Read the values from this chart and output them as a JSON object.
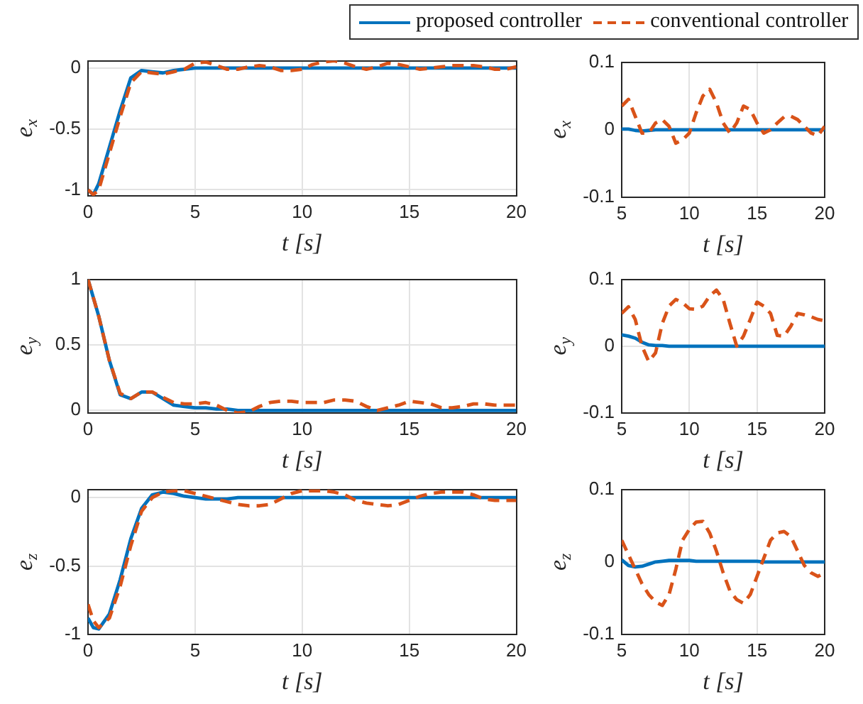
{
  "chart_data": [
    {
      "type": "line",
      "xlabel": "t [s]",
      "ylabel": "e$_{x}$",
      "legend": "top right",
      "grid": true,
      "xlim": [
        0,
        20
      ],
      "xticks": [
        0,
        5,
        10,
        15,
        20
      ],
      "ylim": [
        -1.05,
        0.06
      ],
      "yticks": [
        -1,
        -0.5,
        0
      ],
      "x": [
        0,
        0.25,
        0.5,
        1,
        1.5,
        2,
        2.5,
        3,
        3.5,
        4,
        4.5,
        5,
        5.5,
        6,
        6.5,
        7,
        7.5,
        8,
        8.5,
        9,
        9.5,
        10,
        10.5,
        11,
        11.5,
        12,
        12.5,
        13,
        13.5,
        14,
        14.5,
        15,
        15.5,
        16,
        16.5,
        17,
        17.5,
        18,
        18.5,
        19,
        19.5,
        20
      ],
      "series": [
        {
          "name": "proposed controller",
          "color": "#0072bd",
          "line_style": "solid",
          "values": [
            -1.0,
            -1.04,
            -0.95,
            -0.65,
            -0.35,
            -0.08,
            -0.02,
            -0.03,
            -0.04,
            -0.02,
            -0.01,
            0,
            0,
            0,
            0,
            0,
            0,
            0,
            0,
            0,
            0,
            0,
            0,
            0,
            0,
            0,
            0,
            0,
            0,
            0,
            0,
            0,
            0,
            0,
            0,
            0,
            0,
            0,
            0,
            0,
            0,
            0
          ]
        },
        {
          "name": "conventional controller",
          "color": "#d95319",
          "line_style": "dashed",
          "values": [
            -1.0,
            -1.04,
            -1.0,
            -0.7,
            -0.4,
            -0.12,
            -0.03,
            -0.04,
            -0.05,
            -0.03,
            -0.01,
            0.04,
            0.05,
            0.02,
            -0.01,
            -0.01,
            0.01,
            0.02,
            0.01,
            -0.02,
            -0.02,
            -0.01,
            0.03,
            0.05,
            0.06,
            0.04,
            0.01,
            -0.01,
            0.01,
            0.04,
            0.03,
            0.01,
            -0.01,
            0,
            0.01,
            0.02,
            0.02,
            0.02,
            0.01,
            -0.01,
            -0.01,
            0.01
          ]
        }
      ]
    },
    {
      "type": "line",
      "xlabel": "t [s]",
      "ylabel": "e$_{x}$",
      "grid": true,
      "xlim": [
        5,
        20
      ],
      "xticks": [
        5,
        10,
        15,
        20
      ],
      "ylim": [
        -0.1,
        0.1
      ],
      "yticks": [
        -0.1,
        0,
        0.1
      ],
      "x": [
        5,
        5.5,
        6,
        6.5,
        7,
        7.5,
        8,
        8.5,
        9,
        9.5,
        10,
        10.5,
        11,
        11.5,
        12,
        12.5,
        13,
        13.5,
        14,
        14.5,
        15,
        15.5,
        16,
        16.5,
        17,
        17.5,
        18,
        18.5,
        19,
        19.5,
        20
      ],
      "series": [
        {
          "color": "#0072bd",
          "line_style": "solid",
          "values": [
            0.001,
            0.001,
            -0.001,
            -0.002,
            -0.001,
            0,
            0,
            0,
            0,
            0,
            0,
            0,
            0,
            0,
            0,
            0,
            0,
            0,
            0,
            0,
            0,
            0,
            0,
            0,
            0,
            0,
            0,
            0,
            0,
            0,
            0
          ]
        },
        {
          "color": "#d95319",
          "line_style": "dashed",
          "values": [
            0.035,
            0.045,
            0.02,
            -0.005,
            -0.005,
            0.01,
            0.015,
            0.005,
            -0.02,
            -0.015,
            -0.005,
            0.025,
            0.05,
            0.06,
            0.04,
            0.01,
            -0.005,
            0.01,
            0.035,
            0.03,
            0.01,
            -0.005,
            0,
            0.01,
            0.019,
            0.02,
            0.015,
            0.005,
            -0.005,
            -0.009,
            0.005
          ]
        }
      ]
    },
    {
      "type": "line",
      "xlabel": "t [s]",
      "ylabel": "e$_{y}$",
      "grid": true,
      "xlim": [
        0,
        20
      ],
      "xticks": [
        0,
        5,
        10,
        15,
        20
      ],
      "ylim": [
        -0.02,
        1
      ],
      "yticks": [
        0,
        0.5,
        1
      ],
      "x": [
        0,
        0.25,
        0.5,
        1,
        1.5,
        2,
        2.5,
        3,
        3.5,
        4,
        4.5,
        5,
        5.5,
        6,
        6.5,
        7,
        7.5,
        8,
        8.5,
        9,
        9.5,
        10,
        10.5,
        11,
        11.5,
        12,
        12.5,
        13,
        13.5,
        14,
        14.5,
        15,
        15.5,
        16,
        16.5,
        17,
        17.5,
        18,
        18.5,
        19,
        19.5,
        20
      ],
      "series": [
        {
          "color": "#0072bd",
          "line_style": "solid",
          "values": [
            1,
            0.86,
            0.72,
            0.38,
            0.12,
            0.09,
            0.14,
            0.14,
            0.09,
            0.04,
            0.03,
            0.02,
            0.02,
            0.01,
            0.01,
            0,
            0,
            0,
            0,
            0,
            0,
            0,
            0,
            0,
            0,
            0,
            0,
            0,
            0,
            0,
            0,
            0,
            0,
            0,
            0,
            0,
            0,
            0,
            0,
            0,
            0,
            0
          ]
        },
        {
          "color": "#d95319",
          "line_style": "dashed",
          "values": [
            1,
            0.86,
            0.72,
            0.38,
            0.13,
            0.09,
            0.14,
            0.14,
            0.1,
            0.06,
            0.05,
            0.05,
            0.06,
            0.04,
            0.0,
            -0.02,
            -0.01,
            0.03,
            0.06,
            0.07,
            0.07,
            0.06,
            0.06,
            0.06,
            0.08,
            0.08,
            0.07,
            0.03,
            0.0,
            0.02,
            0.04,
            0.07,
            0.06,
            0.05,
            0.02,
            0.02,
            0.03,
            0.05,
            0.05,
            0.04,
            0.04,
            0.04
          ]
        }
      ]
    },
    {
      "type": "line",
      "xlabel": "t [s]",
      "ylabel": "e$_{y}$",
      "grid": true,
      "xlim": [
        5,
        20
      ],
      "xticks": [
        5,
        10,
        15,
        20
      ],
      "ylim": [
        -0.1,
        0.1
      ],
      "yticks": [
        -0.1,
        0,
        0.1
      ],
      "x": [
        5,
        5.5,
        6,
        6.5,
        7,
        7.5,
        8,
        8.5,
        9,
        9.5,
        10,
        10.5,
        11,
        11.5,
        12,
        12.5,
        13,
        13.5,
        14,
        14.5,
        15,
        15.5,
        16,
        16.5,
        17,
        17.5,
        18,
        18.5,
        19,
        19.5,
        20
      ],
      "series": [
        {
          "color": "#0072bd",
          "line_style": "solid",
          "values": [
            0.017,
            0.015,
            0.012,
            0.006,
            0.002,
            0.001,
            0.001,
            0,
            0,
            0,
            0,
            0,
            0,
            0,
            0,
            0,
            0,
            0,
            0,
            0,
            0,
            0,
            0,
            0,
            0,
            0,
            0,
            0,
            0,
            0,
            0
          ]
        },
        {
          "color": "#d95319",
          "line_style": "dashed",
          "values": [
            0.049,
            0.059,
            0.04,
            0.0,
            -0.023,
            -0.01,
            0.034,
            0.06,
            0.07,
            0.065,
            0.056,
            0.055,
            0.06,
            0.075,
            0.084,
            0.07,
            0.034,
            0.0,
            0.015,
            0.04,
            0.066,
            0.06,
            0.049,
            0.016,
            0.015,
            0.03,
            0.049,
            0.047,
            0.044,
            0.04,
            0.038
          ]
        }
      ]
    },
    {
      "type": "line",
      "xlabel": "t [s]",
      "ylabel": "e$_{z}$",
      "grid": true,
      "xlim": [
        0,
        20
      ],
      "xticks": [
        0,
        5,
        10,
        15,
        20
      ],
      "ylim": [
        -1,
        0.06
      ],
      "yticks": [
        -1,
        -0.5,
        0
      ],
      "x": [
        0,
        0.25,
        0.5,
        1,
        1.5,
        2,
        2.5,
        3,
        3.5,
        4,
        4.5,
        5,
        5.5,
        6,
        6.5,
        7,
        7.5,
        8,
        8.5,
        9,
        9.5,
        10,
        10.5,
        11,
        11.5,
        12,
        12.5,
        13,
        13.5,
        14,
        14.5,
        15,
        15.5,
        16,
        16.5,
        17,
        17.5,
        18,
        18.5,
        19,
        19.5,
        20
      ],
      "series": [
        {
          "color": "#0072bd",
          "line_style": "solid",
          "values": [
            -0.88,
            -0.95,
            -0.96,
            -0.85,
            -0.6,
            -0.3,
            -0.08,
            0.02,
            0.04,
            0.03,
            0.01,
            0,
            -0.01,
            -0.01,
            -0.01,
            0,
            0,
            0,
            0,
            0,
            0,
            0,
            0,
            0,
            0,
            0,
            0,
            0,
            0,
            0,
            0,
            0,
            0,
            0,
            0,
            0,
            0,
            0,
            0,
            0,
            0,
            0
          ]
        },
        {
          "color": "#d95319",
          "line_style": "dashed",
          "values": [
            -0.78,
            -0.9,
            -0.95,
            -0.88,
            -0.65,
            -0.35,
            -0.1,
            0.0,
            0.04,
            0.05,
            0.05,
            0.03,
            0.01,
            -0.01,
            -0.03,
            -0.05,
            -0.06,
            -0.06,
            -0.05,
            -0.01,
            0.03,
            0.05,
            0.05,
            0.05,
            0.04,
            0.02,
            -0.02,
            -0.04,
            -0.05,
            -0.06,
            -0.05,
            -0.02,
            0.01,
            0.03,
            0.04,
            0.04,
            0.04,
            0.02,
            -0.01,
            -0.02,
            -0.02,
            -0.02
          ]
        }
      ]
    },
    {
      "type": "line",
      "xlabel": "t [s]",
      "ylabel": "e$_{z}$",
      "grid": true,
      "xlim": [
        5,
        20
      ],
      "xticks": [
        5,
        10,
        15,
        20
      ],
      "ylim": [
        -0.1,
        0.1
      ],
      "yticks": [
        -0.1,
        0,
        0.1
      ],
      "x": [
        5,
        5.5,
        6,
        6.5,
        7,
        7.5,
        8,
        8.5,
        9,
        9.5,
        10,
        10.5,
        11,
        11.5,
        12,
        12.5,
        13,
        13.5,
        14,
        14.5,
        15,
        15.5,
        16,
        16.5,
        17,
        17.5,
        18,
        18.5,
        19,
        19.5,
        20
      ],
      "series": [
        {
          "color": "#0072bd",
          "line_style": "solid",
          "values": [
            0.003,
            -0.005,
            -0.007,
            -0.006,
            -0.003,
            0,
            0.001,
            0.002,
            0.002,
            0.002,
            0.002,
            0.001,
            0.001,
            0.001,
            0.001,
            0.001,
            0.001,
            0.001,
            0.001,
            0.001,
            0.001,
            0,
            0,
            0,
            0,
            0,
            0,
            0,
            0,
            0,
            0
          ]
        },
        {
          "color": "#d95319",
          "line_style": "dashed",
          "values": [
            0.03,
            0.01,
            -0.01,
            -0.03,
            -0.045,
            -0.055,
            -0.06,
            -0.045,
            -0.01,
            0.03,
            0.045,
            0.055,
            0.056,
            0.04,
            0.015,
            -0.015,
            -0.04,
            -0.052,
            -0.057,
            -0.045,
            -0.02,
            0.005,
            0.03,
            0.04,
            0.042,
            0.035,
            0.015,
            -0.005,
            -0.015,
            -0.02,
            -0.015
          ]
        }
      ]
    }
  ]
}
